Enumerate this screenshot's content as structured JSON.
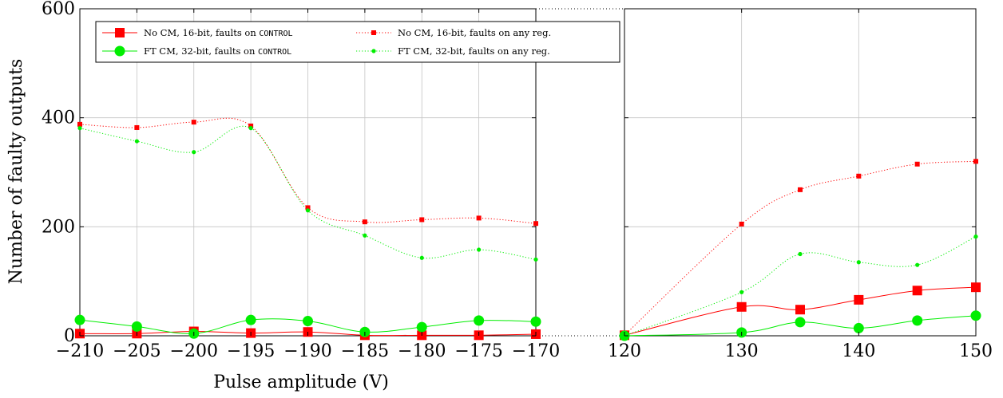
{
  "chart_data": {
    "type": "line",
    "xlabel": "Pulse amplitude (V)",
    "ylabel": "Number of faulty outputs",
    "ylim": [
      0,
      600
    ],
    "yticks": [
      0,
      200,
      400,
      600
    ],
    "grid": true,
    "legend_position": "top-left",
    "panels": [
      {
        "name": "left",
        "xlim": [
          -210,
          -170
        ],
        "xticks": [
          -210,
          -205,
          -200,
          -195,
          -190,
          -185,
          -180,
          -175,
          -170
        ],
        "xtick_labels": [
          "−210",
          "−205",
          "−200",
          "−195",
          "−190",
          "−185",
          "−180",
          "−175",
          "−170"
        ],
        "x": [
          -210,
          -205,
          -200,
          -195,
          -190,
          -185,
          -180,
          -175,
          -170
        ],
        "series": [
          {
            "key": "nocm_control",
            "values": [
              4,
              4,
              8,
              5,
              7,
              1,
              1,
              1,
              3
            ]
          },
          {
            "key": "nocm_any",
            "values": [
              388,
              382,
              392,
              385,
              235,
              209,
              213,
              216,
              206
            ]
          },
          {
            "key": "ftcm_control",
            "values": [
              29,
              17,
              4,
              29,
              27,
              7,
              16,
              28,
              26
            ]
          },
          {
            "key": "ftcm_any",
            "values": [
              381,
              357,
              337,
              381,
              230,
              184,
              143,
              158,
              140
            ]
          }
        ]
      },
      {
        "name": "right",
        "xlim": [
          120,
          150
        ],
        "xticks": [
          120,
          130,
          140,
          150
        ],
        "xtick_labels": [
          "120",
          "130",
          "140",
          "150"
        ],
        "x": [
          120,
          130,
          135,
          140,
          145,
          150
        ],
        "series": [
          {
            "key": "nocm_control",
            "values": [
              1,
              53,
              48,
              66,
              83,
              89
            ]
          },
          {
            "key": "nocm_any",
            "values": [
              1,
              205,
              268,
              293,
              315,
              320
            ]
          },
          {
            "key": "ftcm_control",
            "values": [
              0,
              6,
              25,
              14,
              28,
              37
            ]
          },
          {
            "key": "ftcm_any",
            "values": [
              0,
              80,
              150,
              135,
              130,
              182
            ]
          }
        ]
      }
    ],
    "series_styles": [
      {
        "key": "nocm_control",
        "color": "#ff0000",
        "marker": "square",
        "marker_size": "large",
        "line": "solid"
      },
      {
        "key": "nocm_any",
        "color": "#ff0000",
        "marker": "square",
        "marker_size": "small",
        "line": "dotted"
      },
      {
        "key": "ftcm_control",
        "color": "#00ee00",
        "marker": "circle",
        "marker_size": "large",
        "line": "solid"
      },
      {
        "key": "ftcm_any",
        "color": "#00ee00",
        "marker": "circle",
        "marker_size": "small",
        "line": "dotted"
      }
    ],
    "legend": [
      {
        "key": "nocm_control",
        "text": "No CM, 16-bit, faults on ",
        "mono": "CONTROL"
      },
      {
        "key": "nocm_any",
        "text": "No CM, 16-bit, faults on any reg.",
        "mono": ""
      },
      {
        "key": "ftcm_control",
        "text": "FT CM, 32-bit, faults on ",
        "mono": "CONTROL"
      },
      {
        "key": "ftcm_any",
        "text": "FT CM, 32-bit, faults on any reg.",
        "mono": ""
      }
    ]
  }
}
